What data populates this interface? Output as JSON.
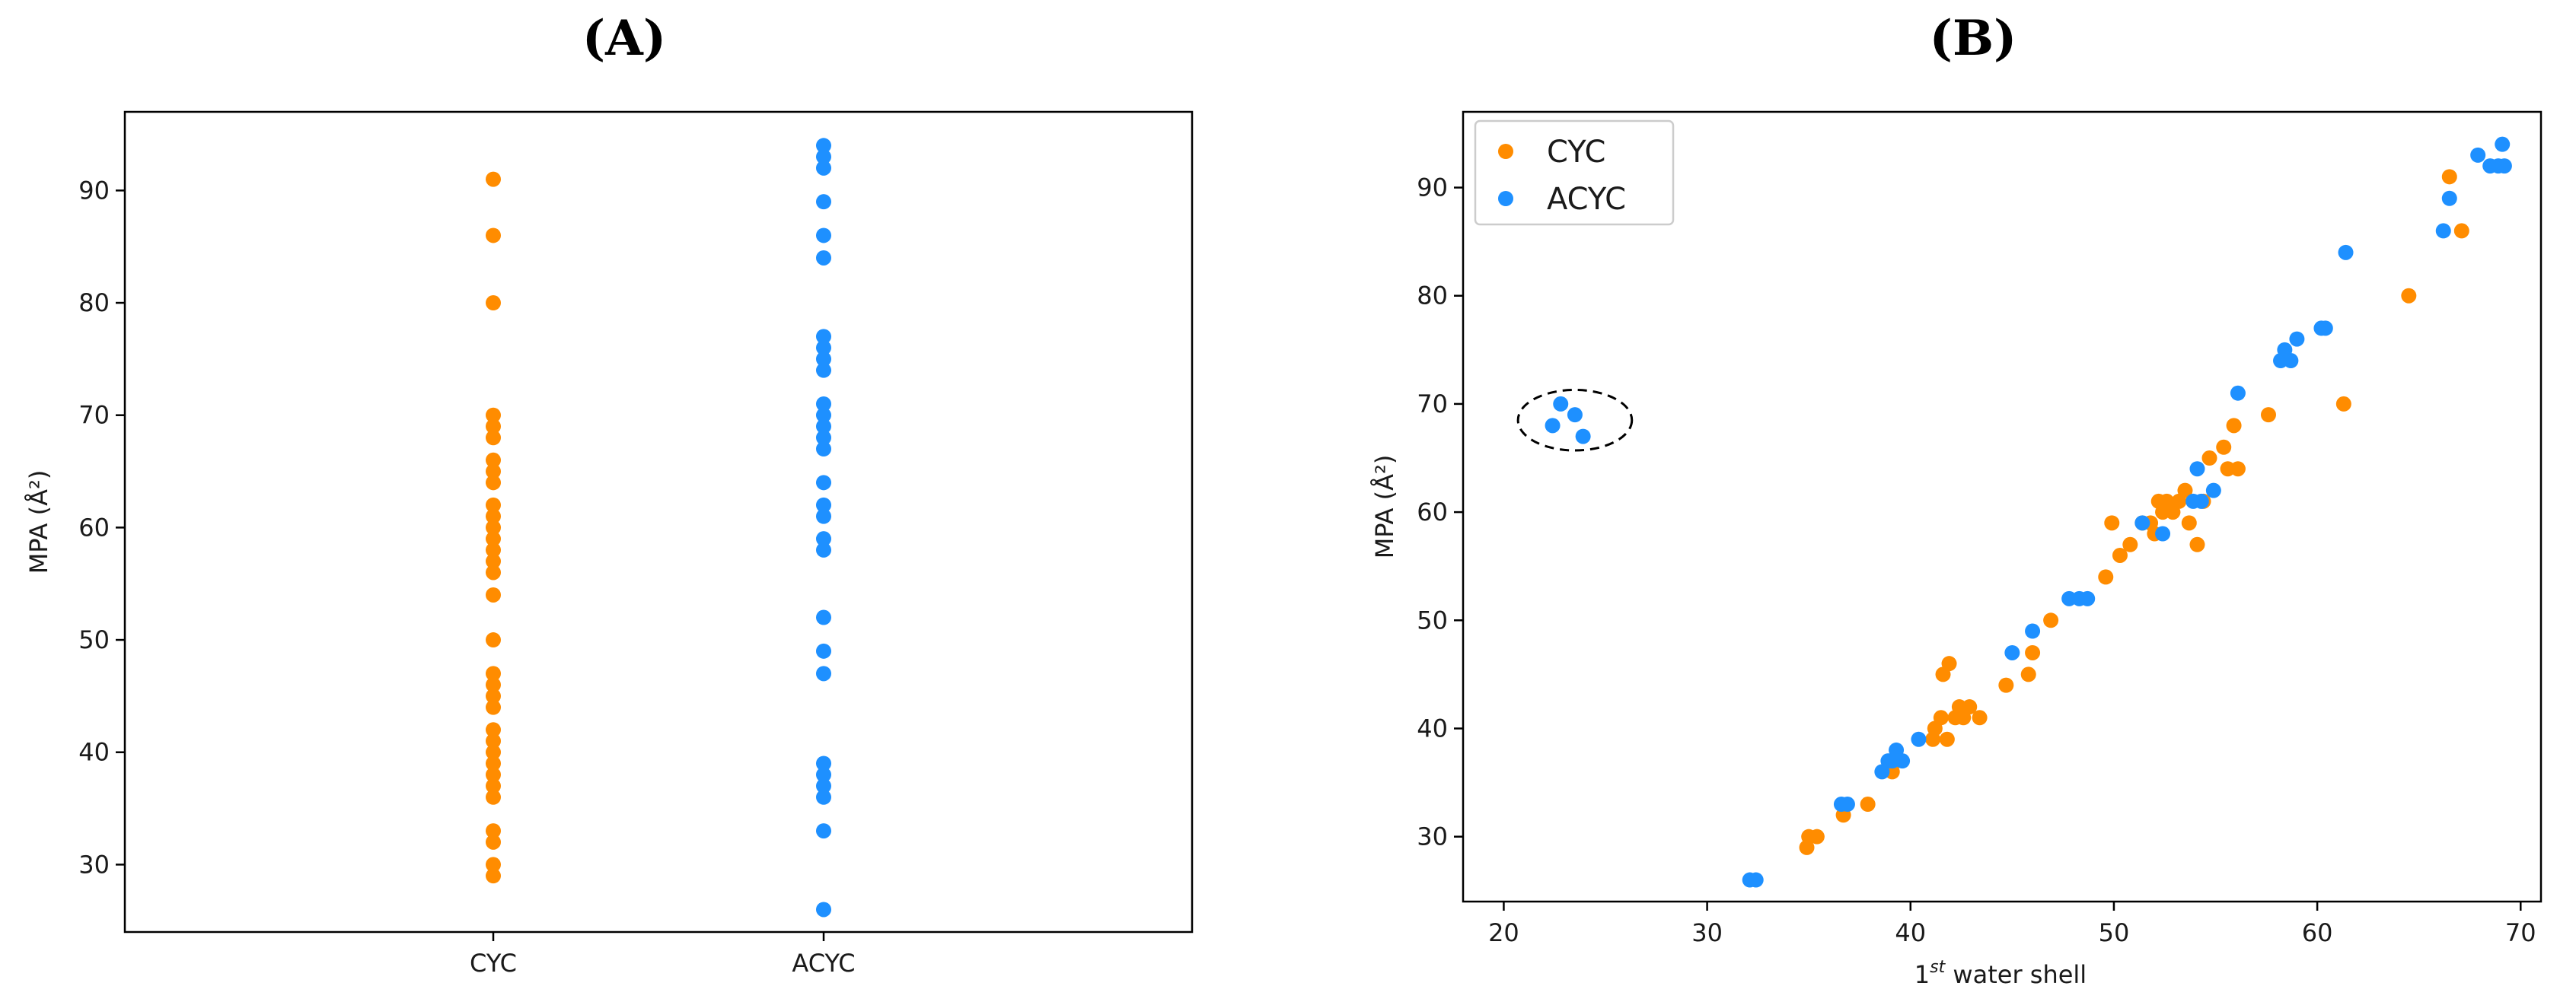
{
  "colors": {
    "CYC": "#FF8C00",
    "ACYC": "#1E90FF"
  },
  "chart_data": [
    {
      "panel_label": "(A)",
      "type": "scatter",
      "categories": [
        "CYC",
        "ACYC"
      ],
      "ylabel": "MPA (Å²)",
      "ylim": [
        24,
        97
      ],
      "yticks": [
        30,
        40,
        50,
        60,
        70,
        80,
        90
      ],
      "series": [
        {
          "name": "CYC",
          "category": "CYC",
          "values": [
            91,
            86,
            80,
            70,
            69,
            68,
            66,
            65,
            64,
            62,
            61,
            60,
            59,
            58,
            57,
            56,
            54,
            50,
            47,
            46,
            45,
            44,
            42,
            41,
            40,
            39,
            38,
            37,
            36,
            33,
            32,
            30,
            29
          ]
        },
        {
          "name": "ACYC",
          "category": "ACYC",
          "values": [
            94,
            93,
            92,
            89,
            86,
            84,
            77,
            76,
            75,
            74,
            71,
            70,
            69,
            68,
            67,
            64,
            62,
            61,
            59,
            58,
            52,
            49,
            47,
            39,
            38,
            37,
            36,
            33,
            26
          ]
        }
      ]
    },
    {
      "panel_label": "(B)",
      "type": "scatter",
      "xlabel_base": "1",
      "xlabel_sup": "st",
      "xlabel_rest": " water shell",
      "ylabel": "MPA (Å²)",
      "xlim": [
        18,
        71
      ],
      "ylim": [
        24,
        97
      ],
      "xticks": [
        20,
        30,
        40,
        50,
        60,
        70
      ],
      "yticks": [
        30,
        40,
        50,
        60,
        70,
        80,
        90
      ],
      "legend": {
        "position": "top-left",
        "entries": [
          "CYC",
          "ACYC"
        ]
      },
      "annotation": {
        "type": "ellipse",
        "cx": 23.5,
        "cy": 68.5,
        "rx": 2.8,
        "ry": 2.8
      },
      "series": [
        {
          "name": "CYC",
          "points": [
            [
              34.9,
              29
            ],
            [
              35.0,
              30
            ],
            [
              35.4,
              30
            ],
            [
              36.7,
              32
            ],
            [
              37.9,
              33
            ],
            [
              39.1,
              36
            ],
            [
              39.3,
              37
            ],
            [
              41.1,
              39
            ],
            [
              41.2,
              40
            ],
            [
              41.5,
              41
            ],
            [
              41.8,
              39
            ],
            [
              41.6,
              45
            ],
            [
              41.9,
              46
            ],
            [
              42.2,
              41
            ],
            [
              42.4,
              42
            ],
            [
              42.6,
              41
            ],
            [
              42.9,
              42
            ],
            [
              43.4,
              41
            ],
            [
              44.7,
              44
            ],
            [
              45.8,
              45
            ],
            [
              46.0,
              47
            ],
            [
              46.9,
              50
            ],
            [
              49.6,
              54
            ],
            [
              49.9,
              59
            ],
            [
              50.3,
              56
            ],
            [
              50.8,
              57
            ],
            [
              51.4,
              59
            ],
            [
              51.8,
              59
            ],
            [
              52.0,
              58
            ],
            [
              52.2,
              61
            ],
            [
              52.4,
              60
            ],
            [
              52.6,
              61
            ],
            [
              52.9,
              60
            ],
            [
              53.2,
              61
            ],
            [
              53.5,
              62
            ],
            [
              53.7,
              59
            ],
            [
              54.1,
              57
            ],
            [
              54.4,
              61
            ],
            [
              54.7,
              65
            ],
            [
              55.4,
              66
            ],
            [
              55.6,
              64
            ],
            [
              55.9,
              68
            ],
            [
              56.1,
              64
            ],
            [
              57.6,
              69
            ],
            [
              61.3,
              70
            ],
            [
              64.5,
              80
            ],
            [
              66.5,
              91
            ],
            [
              67.1,
              86
            ]
          ]
        },
        {
          "name": "ACYC",
          "points": [
            [
              22.4,
              68
            ],
            [
              22.8,
              70
            ],
            [
              23.5,
              69
            ],
            [
              23.9,
              67
            ],
            [
              32.1,
              26
            ],
            [
              32.4,
              26
            ],
            [
              36.6,
              33
            ],
            [
              36.9,
              33
            ],
            [
              38.6,
              36
            ],
            [
              38.9,
              37
            ],
            [
              39.1,
              37
            ],
            [
              39.3,
              38
            ],
            [
              39.6,
              37
            ],
            [
              40.4,
              39
            ],
            [
              45.0,
              47
            ],
            [
              46.0,
              49
            ],
            [
              47.8,
              52
            ],
            [
              48.3,
              52
            ],
            [
              48.7,
              52
            ],
            [
              51.4,
              59
            ],
            [
              52.4,
              58
            ],
            [
              53.9,
              61
            ],
            [
              54.1,
              64
            ],
            [
              54.3,
              61
            ],
            [
              54.9,
              62
            ],
            [
              56.1,
              71
            ],
            [
              58.2,
              74
            ],
            [
              58.4,
              75
            ],
            [
              58.7,
              74
            ],
            [
              59.0,
              76
            ],
            [
              60.2,
              77
            ],
            [
              60.4,
              77
            ],
            [
              61.4,
              84
            ],
            [
              66.2,
              86
            ],
            [
              66.5,
              89
            ],
            [
              67.9,
              93
            ],
            [
              68.5,
              92
            ],
            [
              68.9,
              92
            ],
            [
              69.1,
              94
            ],
            [
              69.2,
              92
            ]
          ]
        }
      ]
    }
  ]
}
